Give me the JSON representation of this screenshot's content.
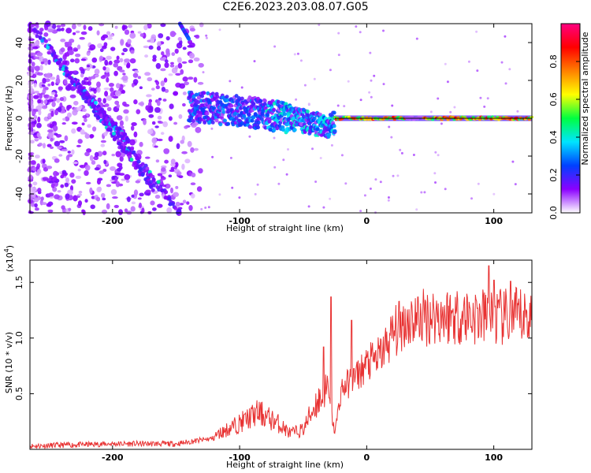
{
  "figure": {
    "title": "C2E6.2023.203.08.07.G05"
  },
  "chart_data": [
    {
      "type": "heatmap",
      "xlabel": "Height of straight line (km)",
      "ylabel": "Frequency (Hz)",
      "xlim": [
        -265,
        130
      ],
      "ylim": [
        -50,
        50
      ],
      "xticks": [
        -200,
        -100,
        0,
        100
      ],
      "yticks": [
        -40,
        -20,
        0,
        20,
        40
      ],
      "grid": false,
      "features": {
        "diagonal_traces": [
          {
            "from": [
              -263,
              48
            ],
            "to": [
              -147,
              -50
            ]
          },
          {
            "from": [
              -246,
              33
            ],
            "to": [
              -168,
              -37
            ]
          },
          {
            "from": [
              -228,
              18
            ],
            "to": [
              -188,
              -12
            ]
          }
        ],
        "vertical_trace_top": {
          "from": [
            -147,
            50
          ],
          "to": [
            -140,
            42
          ]
        },
        "center_band": [
          {
            "x": -140,
            "y": 6
          },
          {
            "x": -120,
            "y": 5
          },
          {
            "x": -100,
            "y": 4
          },
          {
            "x": -80,
            "y": 2
          },
          {
            "x": -60,
            "y": 0
          },
          {
            "x": -40,
            "y": -3
          },
          {
            "x": -30,
            "y": -4
          },
          {
            "x": -20,
            "y": -1
          },
          {
            "x": 0,
            "y": 0
          },
          {
            "x": 50,
            "y": 0
          },
          {
            "x": 130,
            "y": 0
          }
        ]
      },
      "colorbar": {
        "label": "Normalized spectral amplitude",
        "range": [
          0,
          1
        ],
        "ticks": [
          "0.0",
          "0.2",
          "0.4",
          "0.6",
          "0.8"
        ],
        "colors": [
          "#ffffff",
          "#8b00ff",
          "#0040ff",
          "#00e5ff",
          "#00ff40",
          "#ffff00",
          "#ff8000",
          "#ff0000",
          "#ff0080"
        ]
      }
    },
    {
      "type": "line",
      "xlabel": "Height of straight line (km)",
      "ylabel": "SNR (10 * v/v)",
      "y_multiplier": "(x10",
      "y_multiplier_exp": "4",
      "y_multiplier_close": ")",
      "xlim": [
        -265,
        130
      ],
      "ylim": [
        0,
        17000
      ],
      "xticks": [
        -200,
        -100,
        0,
        100
      ],
      "ytick_labels": [
        "0.5",
        "1.0",
        "1.5"
      ],
      "ytick_values": [
        5000,
        10000,
        15000
      ],
      "color": "#e83232",
      "grid": false,
      "series": [
        {
          "envelope": [
            {
              "x": -265,
              "y": 300
            },
            {
              "x": -200,
              "y": 500
            },
            {
              "x": -150,
              "y": 500
            },
            {
              "x": -120,
              "y": 1000
            },
            {
              "x": -100,
              "y": 2000
            },
            {
              "x": -85,
              "y": 2800
            },
            {
              "x": -70,
              "y": 2000
            },
            {
              "x": -60,
              "y": 1200
            },
            {
              "x": -50,
              "y": 1500
            },
            {
              "x": -40,
              "y": 3500
            },
            {
              "x": -30,
              "y": 4500
            },
            {
              "x": -25,
              "y": 1500
            },
            {
              "x": -20,
              "y": 5500
            },
            {
              "x": -10,
              "y": 6500
            },
            {
              "x": 0,
              "y": 7800
            },
            {
              "x": 10,
              "y": 8500
            },
            {
              "x": 20,
              "y": 10500
            },
            {
              "x": 30,
              "y": 11800
            },
            {
              "x": 50,
              "y": 12300
            },
            {
              "x": 80,
              "y": 12300
            },
            {
              "x": 100,
              "y": 12000
            },
            {
              "x": 130,
              "y": 12200
            }
          ],
          "spikes": [
            {
              "x": -28,
              "y": 13700
            },
            {
              "x": -34,
              "y": 9200
            },
            {
              "x": -12,
              "y": 11600
            },
            {
              "x": 96,
              "y": 16500
            },
            {
              "x": 100,
              "y": 15200
            },
            {
              "x": 113,
              "y": 15100
            }
          ]
        }
      ]
    }
  ]
}
